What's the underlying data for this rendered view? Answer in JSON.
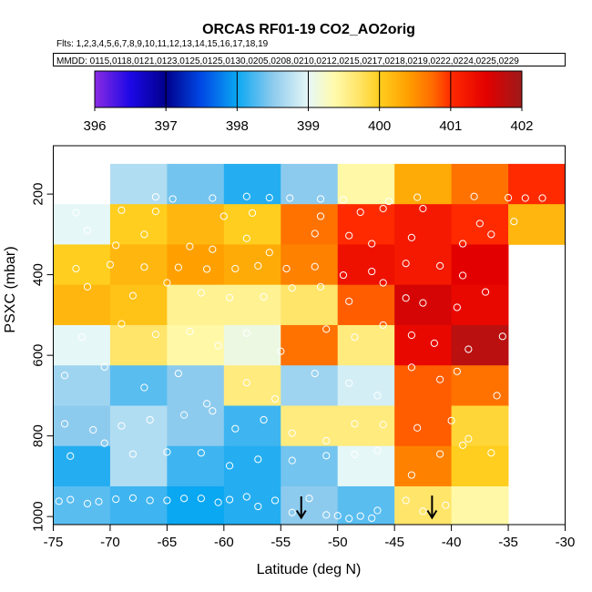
{
  "chart_data": {
    "type": "heatmap",
    "title": "ORCAS RF01-19 CO2_AO2orig",
    "flights_line": "Flts: 1,2,3,4,5,6,7,8,9,10,11,12,13,14,15,16,17,18,19",
    "dates_line": "MMDD: 0115,0118,0121,0123,0125,0125,0130,0205,0208,0210,0212,0215,0217,0218,0219,0222,0224,0225,0229",
    "xlabel": "Latitude (deg N)",
    "ylabel": "PSXC (mbar)",
    "xlim": [
      -75,
      -30
    ],
    "ylim": [
      1020,
      80
    ],
    "xticks": [
      -75,
      -70,
      -65,
      -60,
      -55,
      -50,
      -45,
      -40,
      -35,
      -30
    ],
    "yticks": [
      200,
      400,
      600,
      800,
      1000
    ],
    "colorbar": {
      "min": 396,
      "max": 402,
      "ticks": [
        396,
        397,
        398,
        399,
        400,
        401,
        402
      ],
      "stops": [
        {
          "v": 396.0,
          "c": "#8a2be2"
        },
        {
          "v": 396.5,
          "c": "#1c08e6"
        },
        {
          "v": 397.0,
          "c": "#00008b"
        },
        {
          "v": 397.5,
          "c": "#0049e6"
        },
        {
          "v": 398.0,
          "c": "#0aa7f2"
        },
        {
          "v": 398.5,
          "c": "#8dcbee"
        },
        {
          "v": 399.0,
          "c": "#e6f7f7"
        },
        {
          "v": 399.35,
          "c": "#fffbb0"
        },
        {
          "v": 399.7,
          "c": "#ffe56a"
        },
        {
          "v": 400.0,
          "c": "#ffce1e"
        },
        {
          "v": 400.4,
          "c": "#ffa000"
        },
        {
          "v": 400.75,
          "c": "#ff6a00"
        },
        {
          "v": 401.0,
          "c": "#ff2a00"
        },
        {
          "v": 401.5,
          "c": "#e30000"
        },
        {
          "v": 402.0,
          "c": "#9e1a1a"
        }
      ]
    },
    "bins": {
      "lat_edges": [
        -75,
        -70,
        -65,
        -60,
        -55,
        -50,
        -45,
        -40,
        -35,
        -30
      ],
      "p_edges": [
        125,
        225,
        325,
        425,
        525,
        625,
        725,
        825,
        925,
        1025
      ],
      "grid_values": [
        [
          null,
          398.7,
          398.4,
          398.1,
          398.5,
          399.4,
          400.3,
          400.7,
          401.0
        ],
        [
          399.0,
          400.0,
          400.2,
          400.0,
          400.7,
          401.0,
          401.2,
          401.0,
          400.2
        ],
        [
          400.0,
          400.2,
          400.4,
          400.3,
          400.6,
          401.3,
          401.2,
          401.5,
          null
        ],
        [
          400.2,
          400.1,
          399.5,
          399.5,
          399.7,
          400.8,
          401.6,
          401.4,
          null
        ],
        [
          399.0,
          399.7,
          399.4,
          399.1,
          400.7,
          399.6,
          401.4,
          401.8,
          null
        ],
        [
          398.6,
          398.3,
          398.5,
          399.6,
          398.6,
          398.9,
          400.8,
          400.7,
          null
        ],
        [
          398.5,
          398.7,
          398.5,
          398.2,
          399.6,
          399.6,
          400.8,
          399.9,
          null
        ],
        [
          398.1,
          398.7,
          398.2,
          398.1,
          398.4,
          399.0,
          400.6,
          400.0,
          null
        ],
        [
          398.3,
          398.2,
          398.0,
          398.1,
          398.5,
          398.3,
          399.7,
          399.4,
          null
        ]
      ]
    },
    "arrows": [
      {
        "lat": -53.2,
        "p_top": 950,
        "p_tip": 1003
      },
      {
        "lat": -41.7,
        "p_top": 948,
        "p_tip": 1003
      }
    ],
    "points": [
      [
        -66,
        207
      ],
      [
        -64.5,
        212
      ],
      [
        -61,
        210
      ],
      [
        -58,
        206
      ],
      [
        -56,
        209
      ],
      [
        -54.2,
        210
      ],
      [
        -51.5,
        212
      ],
      [
        -49.5,
        214
      ],
      [
        -45.5,
        218
      ],
      [
        -43,
        208
      ],
      [
        -38,
        206
      ],
      [
        -35,
        209
      ],
      [
        -33.5,
        210
      ],
      [
        -32,
        210
      ],
      [
        -73,
        246
      ],
      [
        -69,
        240
      ],
      [
        -66,
        243
      ],
      [
        -60,
        255
      ],
      [
        -57.5,
        247
      ],
      [
        -51.5,
        255
      ],
      [
        -48,
        245
      ],
      [
        -46,
        236
      ],
      [
        -42.5,
        236
      ],
      [
        -37.5,
        273
      ],
      [
        -34.5,
        268
      ],
      [
        -72,
        290
      ],
      [
        -69.5,
        327
      ],
      [
        -67,
        300
      ],
      [
        -63,
        330
      ],
      [
        -61,
        337
      ],
      [
        -58,
        310
      ],
      [
        -56,
        345
      ],
      [
        -52,
        298
      ],
      [
        -49,
        303
      ],
      [
        -47,
        323
      ],
      [
        -43.5,
        308
      ],
      [
        -39,
        323
      ],
      [
        -36.5,
        300
      ],
      [
        -73,
        385
      ],
      [
        -70,
        375
      ],
      [
        -67,
        381
      ],
      [
        -64,
        382
      ],
      [
        -61.5,
        386
      ],
      [
        -59,
        385
      ],
      [
        -57,
        378
      ],
      [
        -54.5,
        385
      ],
      [
        -52,
        380
      ],
      [
        -49.5,
        401
      ],
      [
        -47,
        392
      ],
      [
        -44,
        372
      ],
      [
        -41,
        378
      ],
      [
        -39,
        402
      ],
      [
        -72,
        430
      ],
      [
        -68,
        452
      ],
      [
        -65,
        420
      ],
      [
        -62,
        445
      ],
      [
        -59.5,
        457
      ],
      [
        -56.5,
        455
      ],
      [
        -54,
        433
      ],
      [
        -51.5,
        430
      ],
      [
        -49,
        466
      ],
      [
        -46,
        420
      ],
      [
        -44,
        458
      ],
      [
        -42.5,
        470
      ],
      [
        -39.5,
        481
      ],
      [
        -37,
        443
      ],
      [
        -72.5,
        555
      ],
      [
        -69,
        522
      ],
      [
        -66,
        548
      ],
      [
        -63,
        541
      ],
      [
        -60.5,
        576
      ],
      [
        -58,
        545
      ],
      [
        -55,
        590
      ],
      [
        -51,
        535
      ],
      [
        -48.5,
        555
      ],
      [
        -46,
        525
      ],
      [
        -43.5,
        550
      ],
      [
        -41.5,
        570
      ],
      [
        -38.5,
        585
      ],
      [
        -35.5,
        553
      ],
      [
        -34.5,
        556
      ],
      [
        -74,
        650
      ],
      [
        -70.5,
        629
      ],
      [
        -67,
        680
      ],
      [
        -64,
        645
      ],
      [
        -61.5,
        720
      ],
      [
        -58,
        668
      ],
      [
        -55.5,
        708
      ],
      [
        -52,
        645
      ],
      [
        -49,
        669
      ],
      [
        -46.5,
        700
      ],
      [
        -43.5,
        630
      ],
      [
        -41,
        660
      ],
      [
        -39.5,
        640
      ],
      [
        -36,
        700
      ],
      [
        -74,
        770
      ],
      [
        -71.5,
        785
      ],
      [
        -69,
        775
      ],
      [
        -66.5,
        760
      ],
      [
        -63.5,
        748
      ],
      [
        -61,
        738
      ],
      [
        -59,
        782
      ],
      [
        -56.5,
        760
      ],
      [
        -54,
        793
      ],
      [
        -51,
        812
      ],
      [
        -48.5,
        770
      ],
      [
        -46,
        772
      ],
      [
        -43,
        780
      ],
      [
        -40,
        762
      ],
      [
        -38.5,
        807
      ],
      [
        -73.5,
        850
      ],
      [
        -70.5,
        818
      ],
      [
        -68,
        845
      ],
      [
        -65,
        840
      ],
      [
        -62,
        842
      ],
      [
        -59.5,
        874
      ],
      [
        -57,
        858
      ],
      [
        -54,
        861
      ],
      [
        -51,
        849
      ],
      [
        -48.5,
        846
      ],
      [
        -46.5,
        836
      ],
      [
        -43.5,
        897
      ],
      [
        -41,
        845
      ],
      [
        -39,
        823
      ],
      [
        -36.5,
        842
      ],
      [
        -74.5,
        962
      ],
      [
        -73.5,
        958
      ],
      [
        -72,
        968
      ],
      [
        -71,
        963
      ],
      [
        -69.5,
        957
      ],
      [
        -68,
        954
      ],
      [
        -66.5,
        960
      ],
      [
        -65,
        960
      ],
      [
        -63.5,
        955
      ],
      [
        -62,
        955
      ],
      [
        -60.5,
        965
      ],
      [
        -59.5,
        958
      ],
      [
        -58,
        951
      ],
      [
        -57,
        975
      ],
      [
        -55.5,
        960
      ],
      [
        -54,
        990
      ],
      [
        -52.5,
        955
      ],
      [
        -51,
        996
      ],
      [
        -50,
        998
      ],
      [
        -49,
        1005
      ],
      [
        -48,
        999
      ],
      [
        -47,
        1004
      ],
      [
        -46.5,
        985
      ],
      [
        -44,
        960
      ],
      [
        -42.5,
        987
      ],
      [
        -40.5,
        972
      ]
    ]
  }
}
